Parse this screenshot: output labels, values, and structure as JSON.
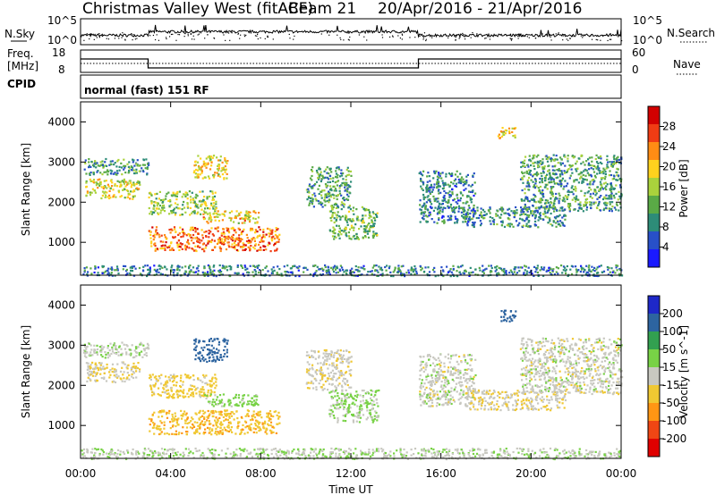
{
  "header": {
    "title": "Christmas Valley West (fitACF)",
    "beam": "Beam 21",
    "date_range": "20/Apr/2016 - 21/Apr/2016"
  },
  "noise_panel": {
    "left_label": "N.Sky",
    "right_label": "N.Search",
    "left_ticks": [
      "10^5",
      "10^0"
    ],
    "right_ticks": [
      "10^5",
      "10^0"
    ]
  },
  "freq_panel": {
    "left_label_1": "Freq.",
    "left_label_2": "[MHz]",
    "right_label": "Nave",
    "left_ticks": [
      "18",
      "8"
    ],
    "right_ticks": [
      "60",
      "0"
    ]
  },
  "cpid_panel": {
    "label": "CPID",
    "text": "normal (fast) 151 RF"
  },
  "power_panel": {
    "ylabel": "Slant Range [km]",
    "yticks": [
      "4000",
      "3000",
      "2000",
      "1000"
    ],
    "colorbar_label": "Power [dB]",
    "colorbar_ticks": [
      "28",
      "24",
      "20",
      "16",
      "12",
      "8",
      "4"
    ],
    "colors": [
      "#1a1aff",
      "#2850c8",
      "#2d8c78",
      "#5aaa46",
      "#aad23c",
      "#ffd21e",
      "#ff8c14",
      "#f03c14",
      "#d20000"
    ]
  },
  "velocity_panel": {
    "ylabel": "Slant Range [km]",
    "yticks": [
      "4000",
      "3000",
      "2000",
      "1000"
    ],
    "colorbar_label": "Velocity [m s^-1]",
    "colorbar_ticks": [
      "200",
      "100",
      "50",
      "15",
      "-15",
      "-50",
      "-100",
      "-200"
    ],
    "colors": [
      "#1e28c8",
      "#2d64a0",
      "#32a050",
      "#78d246",
      "#c8c8c0",
      "#f0c832",
      "#ff9614",
      "#f04614",
      "#e00000"
    ]
  },
  "xaxis": {
    "ticks": [
      "00:00",
      "04:00",
      "08:00",
      "12:00",
      "16:00",
      "20:00",
      "00:00"
    ],
    "label": "Time UT"
  },
  "chart_data": {
    "type": "heatmap",
    "title": "Christmas Valley West (fitACF)",
    "x_range_hours": [
      0,
      24
    ],
    "y_range_km": [
      180,
      4500
    ],
    "frequency_mhz_segments": [
      {
        "start_hour": 0,
        "end_hour": 3,
        "freq_mhz": 14
      },
      {
        "start_hour": 3,
        "end_hour": 15,
        "freq_mhz": 10
      },
      {
        "start_hour": 15,
        "end_hour": 24,
        "freq_mhz": 14
      }
    ],
    "scatter_regions": [
      {
        "t_start": 0.2,
        "t_end": 2.6,
        "r_min": 2100,
        "r_max": 2600,
        "power_db": 16,
        "velocity": -10
      },
      {
        "t_start": 0.1,
        "t_end": 3.0,
        "r_min": 2700,
        "r_max": 3100,
        "power_db": 10,
        "velocity": 5
      },
      {
        "t_start": 3.0,
        "t_end": 6.0,
        "r_min": 1700,
        "r_max": 2300,
        "power_db": 14,
        "velocity": -30
      },
      {
        "t_start": 5.0,
        "t_end": 6.5,
        "r_min": 2600,
        "r_max": 3200,
        "power_db": 18,
        "velocity": 150
      },
      {
        "t_start": 3.0,
        "t_end": 8.8,
        "r_min": 800,
        "r_max": 1400,
        "power_db": 22,
        "velocity": -40
      },
      {
        "t_start": 5.4,
        "t_end": 7.9,
        "r_min": 1500,
        "r_max": 1800,
        "power_db": 18,
        "velocity": 30
      },
      {
        "t_start": 10.0,
        "t_end": 12.0,
        "r_min": 1900,
        "r_max": 2900,
        "power_db": 10,
        "velocity": -5
      },
      {
        "t_start": 11.0,
        "t_end": 13.2,
        "r_min": 1100,
        "r_max": 1900,
        "power_db": 12,
        "velocity": 20
      },
      {
        "t_start": 15.0,
        "t_end": 17.5,
        "r_min": 1500,
        "r_max": 2800,
        "power_db": 8,
        "velocity": 0
      },
      {
        "t_start": 17.0,
        "t_end": 21.5,
        "r_min": 1400,
        "r_max": 1900,
        "power_db": 9,
        "velocity": -10
      },
      {
        "t_start": 18.5,
        "t_end": 19.3,
        "r_min": 3600,
        "r_max": 3900,
        "power_db": 18,
        "velocity": 120
      },
      {
        "t_start": 19.5,
        "t_end": 24.0,
        "r_min": 1800,
        "r_max": 3200,
        "power_db": 10,
        "velocity": 0
      },
      {
        "t_start": 0.0,
        "t_end": 24.0,
        "r_min": 180,
        "r_max": 450,
        "power_db": 8,
        "velocity": 10
      }
    ]
  }
}
